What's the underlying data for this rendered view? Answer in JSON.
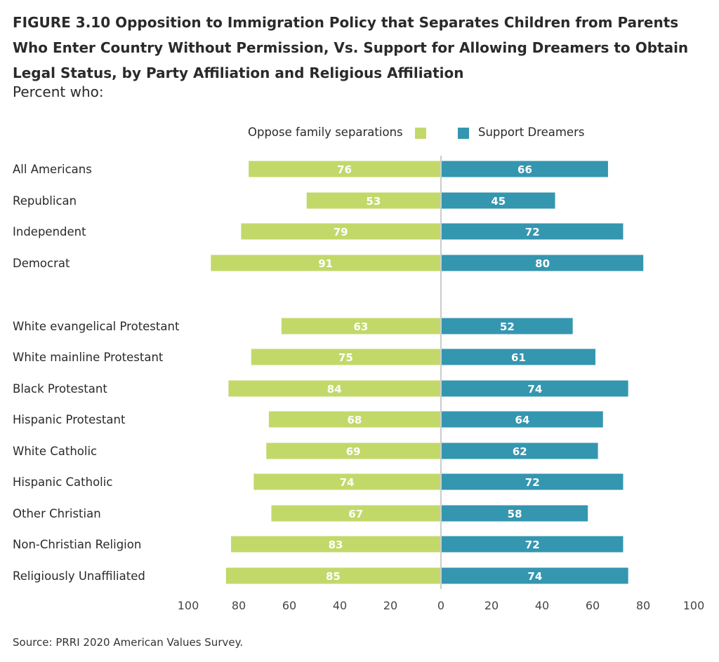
{
  "title": "FIGURE 3.10  Opposition to Immigration Policy that Separates Children from Parents Who Enter Country Without Permission, Vs. Support for Allowing Dreamers to Obtain Legal Status, by Party Affiliation and Religious Affiliation",
  "subtitle": "Percent who:",
  "source": "Source: PRRI 2020 American Values Survey.",
  "colors": {
    "oppose": "#c2d96a",
    "support": "#3596b0",
    "axis": "#cccccc"
  },
  "chart_data": {
    "type": "bar",
    "orientation": "horizontal-diverging",
    "categories": [
      "All Americans",
      "Republican",
      "Independent",
      "Democrat",
      "White evangelical Protestant",
      "White mainline Protestant",
      "Black Protestant",
      "Hispanic Protestant",
      "White Catholic",
      "Hispanic Catholic",
      "Other Christian",
      "Non-Christian Religion",
      "Religiously Unaffiliated"
    ],
    "series": [
      {
        "name": "Oppose family separations",
        "direction": "left",
        "values": [
          76,
          53,
          79,
          91,
          63,
          75,
          84,
          68,
          69,
          74,
          67,
          83,
          85
        ]
      },
      {
        "name": "Support Dreamers",
        "direction": "right",
        "values": [
          66,
          45,
          72,
          80,
          52,
          61,
          74,
          64,
          62,
          72,
          58,
          72,
          74
        ]
      }
    ],
    "xlim": [
      -100,
      100
    ],
    "ticks": [
      "100",
      "80",
      "60",
      "40",
      "20",
      "0",
      "20",
      "40",
      "60",
      "80",
      "100"
    ],
    "legend": "top",
    "grid": false
  }
}
